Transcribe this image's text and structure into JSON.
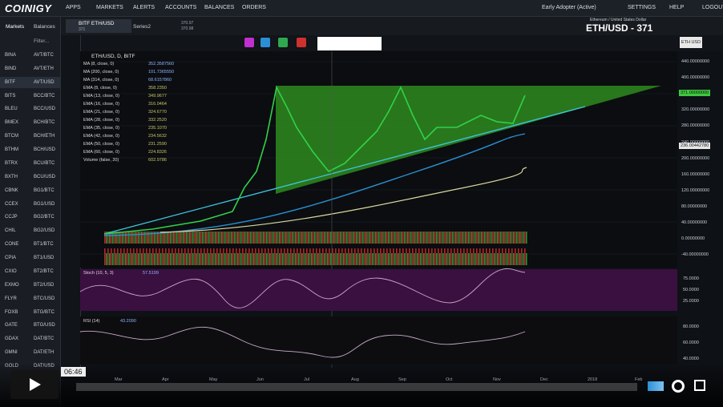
{
  "nav": {
    "logo": "COINIGY",
    "menu": [
      "APPS",
      "MARKETS",
      "ALERTS",
      "ACCOUNTS",
      "BALANCES",
      "ORDERS"
    ],
    "status": "Early Adopter (Active)",
    "right": [
      "SETTINGS",
      "HELP",
      "LOGOUT"
    ]
  },
  "sidebar": {
    "tabs": [
      "Markets",
      "Balances"
    ],
    "filter": "Filter...",
    "exchanges": [
      "BINA",
      "BIND",
      "BITF",
      "BITS",
      "BLEU",
      "BMEX",
      "BTCM",
      "BTHM",
      "BTRX",
      "BXTH",
      "CBNK",
      "CCEX",
      "CCJP",
      "CHIL",
      "CONE",
      "CPIA",
      "CXIO",
      "EXMO",
      "FLYR",
      "FOXB",
      "GATE",
      "GDAX",
      "GMNI",
      "GOLD"
    ],
    "markets": [
      "AVT/BTC",
      "AVT/ETH",
      "AVT/USD",
      "BCC/BTC",
      "BCC/USD",
      "BCH/BTC",
      "BCH/ETH",
      "BCH/USD",
      "BCU/BTC",
      "BCU/USD",
      "BG1/BTC",
      "BG1/USD",
      "BG2/BTC",
      "BG2/USD",
      "BT1/BTC",
      "BT1/USD",
      "BT2/BTC",
      "BT2/USD",
      "BTC/USD",
      "BTG/BTC",
      "BTG/USD",
      "DAT/BTC",
      "DAT/ETH",
      "DAT/USD"
    ]
  },
  "chart_header": {
    "tab": "BITF ETH/USD",
    "tab_sub": "371",
    "series": "Series2",
    "bid": "370.97",
    "ask": "370.98",
    "pair_name": "Ethereum / United States Dollar",
    "pair": "ETH/USD - 371",
    "currency": "ETH USD"
  },
  "legend": {
    "symbol": "ETH/USD, D, BITF",
    "indicators": [
      {
        "name": "MA (8, close, 0)",
        "value": "352.3587560"
      },
      {
        "name": "MA (200, close, 0)",
        "value": "101.7365550"
      },
      {
        "name": "MA (314, close, 0)",
        "value": "68.6157860"
      },
      {
        "name": "EMA (8, close, 0)",
        "value": "358.2350"
      },
      {
        "name": "EMA (13, close, 0)",
        "value": "349.9677"
      },
      {
        "name": "EMA (16, close, 0)",
        "value": "316.0464"
      },
      {
        "name": "EMA (21, close, 0)",
        "value": "324.6770"
      },
      {
        "name": "EMA (28, close, 0)",
        "value": "332.2520"
      },
      {
        "name": "EMA (35, close, 0)",
        "value": "235.1070"
      },
      {
        "name": "EMA (42, close, 0)",
        "value": "234.5632"
      },
      {
        "name": "EMA (50, close, 0)",
        "value": "231.2590"
      },
      {
        "name": "EMA (60, close, 0)",
        "value": "224.8326"
      },
      {
        "name": "Volume (false, 20)",
        "value": "602.9786"
      }
    ]
  },
  "price_axis": {
    "labels": [
      "440.00000000",
      "400.00000000",
      "360.00000000",
      "320.00000000",
      "280.00000000",
      "240.00000000",
      "200.00000000",
      "160.00000000",
      "120.00000000",
      "80.00000000",
      "40.00000000",
      "0.00000000",
      "-40.00000000"
    ],
    "last_price": "371.00000000",
    "line_price": "236.00442780"
  },
  "stoch": {
    "label": "Stoch (10, 5, 3)",
    "value": "57.5199",
    "axis": [
      "75.0000",
      "50.0000",
      "25.0000"
    ]
  },
  "rsi": {
    "label": "RSI (14)",
    "value": "43.2090",
    "axis": [
      "80.0000",
      "60.0000",
      "40.0000"
    ]
  },
  "time_axis": [
    "Mar",
    "Apr",
    "May",
    "Jun",
    "Jul",
    "Aug",
    "Sep",
    "Oct",
    "Nov",
    "Dec",
    "2018",
    "Feb"
  ],
  "video": {
    "time": "06:46"
  }
}
